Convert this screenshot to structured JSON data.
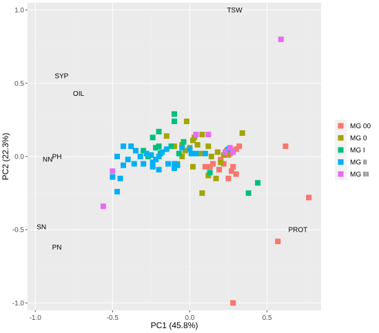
{
  "chart_data": {
    "type": "scatter",
    "title": "",
    "xlabel": "PC1 (45.8%)",
    "ylabel": "PC2 (22.3%)",
    "xlim": [
      -1.05,
      0.85
    ],
    "ylim": [
      -1.05,
      1.05
    ],
    "x_ticks": [
      -1.0,
      -0.5,
      0.0,
      0.5
    ],
    "x_tick_labels": [
      "-1.0",
      "-0.5",
      "0.0",
      "0.5"
    ],
    "y_ticks": [
      -1.0,
      -0.5,
      0.0,
      0.5,
      1.0
    ],
    "y_tick_labels": [
      "-1.0",
      "-0.5",
      "0.0",
      "0.5",
      "1.0"
    ],
    "grid": true,
    "background": "#ebebeb",
    "legend_position": "right",
    "marker": "square",
    "variables": [
      {
        "label": "TSW",
        "x": 0.29,
        "y": 1.0
      },
      {
        "label": "SYP",
        "x": -0.83,
        "y": 0.55
      },
      {
        "label": "OIL",
        "x": -0.72,
        "y": 0.43
      },
      {
        "label": "PH",
        "x": -0.86,
        "y": 0.0
      },
      {
        "label": "NN",
        "x": -0.92,
        "y": -0.02
      },
      {
        "label": "SN",
        "x": -0.96,
        "y": -0.48
      },
      {
        "label": "PN",
        "x": -0.86,
        "y": -0.62
      },
      {
        "label": "PROT",
        "x": 0.7,
        "y": -0.5
      }
    ],
    "series": [
      {
        "name": "MG 00",
        "color": "#f8766d",
        "points": [
          [
            0.62,
            0.07
          ],
          [
            0.77,
            -0.28
          ],
          [
            0.57,
            -0.58
          ],
          [
            0.28,
            -1.0
          ],
          [
            0.15,
            -0.05
          ],
          [
            0.13,
            -0.07
          ],
          [
            0.19,
            -0.09
          ],
          [
            0.22,
            -0.05
          ],
          [
            0.28,
            -0.07
          ],
          [
            0.27,
            -0.1
          ],
          [
            0.3,
            -0.12
          ],
          [
            0.25,
            -0.15
          ],
          [
            0.2,
            -0.02
          ],
          [
            0.28,
            0.04
          ],
          [
            0.3,
            0.05
          ],
          [
            0.32,
            0.07
          ],
          [
            0.25,
            0.01
          ],
          [
            0.1,
            -0.07
          ]
        ]
      },
      {
        "name": "MG 0",
        "color": "#a3a500",
        "points": [
          [
            -0.15,
            0.14
          ],
          [
            -0.05,
            0.08
          ],
          [
            -0.02,
            0.24
          ],
          [
            0.02,
            0.11
          ],
          [
            0.05,
            0.08
          ],
          [
            0.07,
            0.02
          ],
          [
            0.0,
            0.06
          ],
          [
            -0.03,
            0.04
          ],
          [
            0.03,
            0.13
          ],
          [
            0.08,
            0.15
          ],
          [
            0.12,
            0.07
          ],
          [
            0.14,
            0.0
          ],
          [
            0.18,
            0.03
          ],
          [
            0.2,
            -0.04
          ],
          [
            0.22,
            0.01
          ],
          [
            0.24,
            0.04
          ],
          [
            0.26,
            0.02
          ],
          [
            0.34,
            0.16
          ],
          [
            0.08,
            -0.25
          ],
          [
            0.17,
            -0.15
          ],
          [
            0.12,
            -0.13
          ],
          [
            0.02,
            -0.07
          ],
          [
            -0.05,
            0.0
          ],
          [
            -0.08,
            -0.05
          ],
          [
            -0.1,
            0.07
          ]
        ]
      },
      {
        "name": "MG I",
        "color": "#00bf7d",
        "points": [
          [
            -0.1,
            0.29
          ],
          [
            -0.1,
            0.24
          ],
          [
            -0.2,
            0.17
          ],
          [
            -0.24,
            0.13
          ],
          [
            -0.12,
            0.07
          ],
          [
            -0.04,
            0.1
          ],
          [
            -0.07,
            0.02
          ],
          [
            -0.19,
            0.02
          ],
          [
            -0.22,
            0.06
          ],
          [
            -0.3,
            0.04
          ],
          [
            -0.27,
            0.0
          ],
          [
            0.44,
            -0.18
          ],
          [
            0.38,
            -0.25
          ],
          [
            0.13,
            -0.11
          ],
          [
            -0.2,
            0.07
          ]
        ]
      },
      {
        "name": "MG II",
        "color": "#00b0f6",
        "points": [
          [
            -0.43,
            0.07
          ],
          [
            -0.38,
            0.07
          ],
          [
            -0.35,
            0.04
          ],
          [
            -0.32,
            0.0
          ],
          [
            -0.3,
            -0.05
          ],
          [
            -0.28,
            0.02
          ],
          [
            -0.25,
            0.01
          ],
          [
            -0.22,
            -0.02
          ],
          [
            -0.2,
            0.0
          ],
          [
            -0.18,
            0.03
          ],
          [
            -0.15,
            0.05
          ],
          [
            -0.14,
            -0.05
          ],
          [
            -0.1,
            -0.05
          ],
          [
            -0.08,
            -0.06
          ],
          [
            -0.36,
            -0.05
          ],
          [
            -0.4,
            -0.02
          ],
          [
            -0.43,
            -0.06
          ],
          [
            -0.47,
            0.0
          ],
          [
            -0.2,
            -0.09
          ],
          [
            -0.24,
            -0.07
          ],
          [
            -0.5,
            -0.14
          ],
          [
            -0.45,
            -0.15
          ],
          [
            -0.47,
            -0.24
          ],
          [
            -0.1,
            -0.08
          ],
          [
            0.0,
            0.05
          ],
          [
            0.01,
            0.02
          ],
          [
            0.04,
            0.02
          ],
          [
            0.1,
            0.02
          ],
          [
            0.25,
            0.05
          ],
          [
            -0.05,
            0.06
          ],
          [
            -0.24,
            -0.04
          ]
        ]
      },
      {
        "name": "MG III",
        "color": "#e76bf3",
        "points": [
          [
            0.59,
            0.8
          ],
          [
            -0.56,
            -0.34
          ],
          [
            -0.5,
            -0.1
          ],
          [
            0.04,
            0.15
          ],
          [
            0.12,
            0.15
          ],
          [
            0.23,
            0.03
          ],
          [
            0.26,
            0.06
          ],
          [
            0.28,
            0.03
          ]
        ]
      }
    ]
  }
}
